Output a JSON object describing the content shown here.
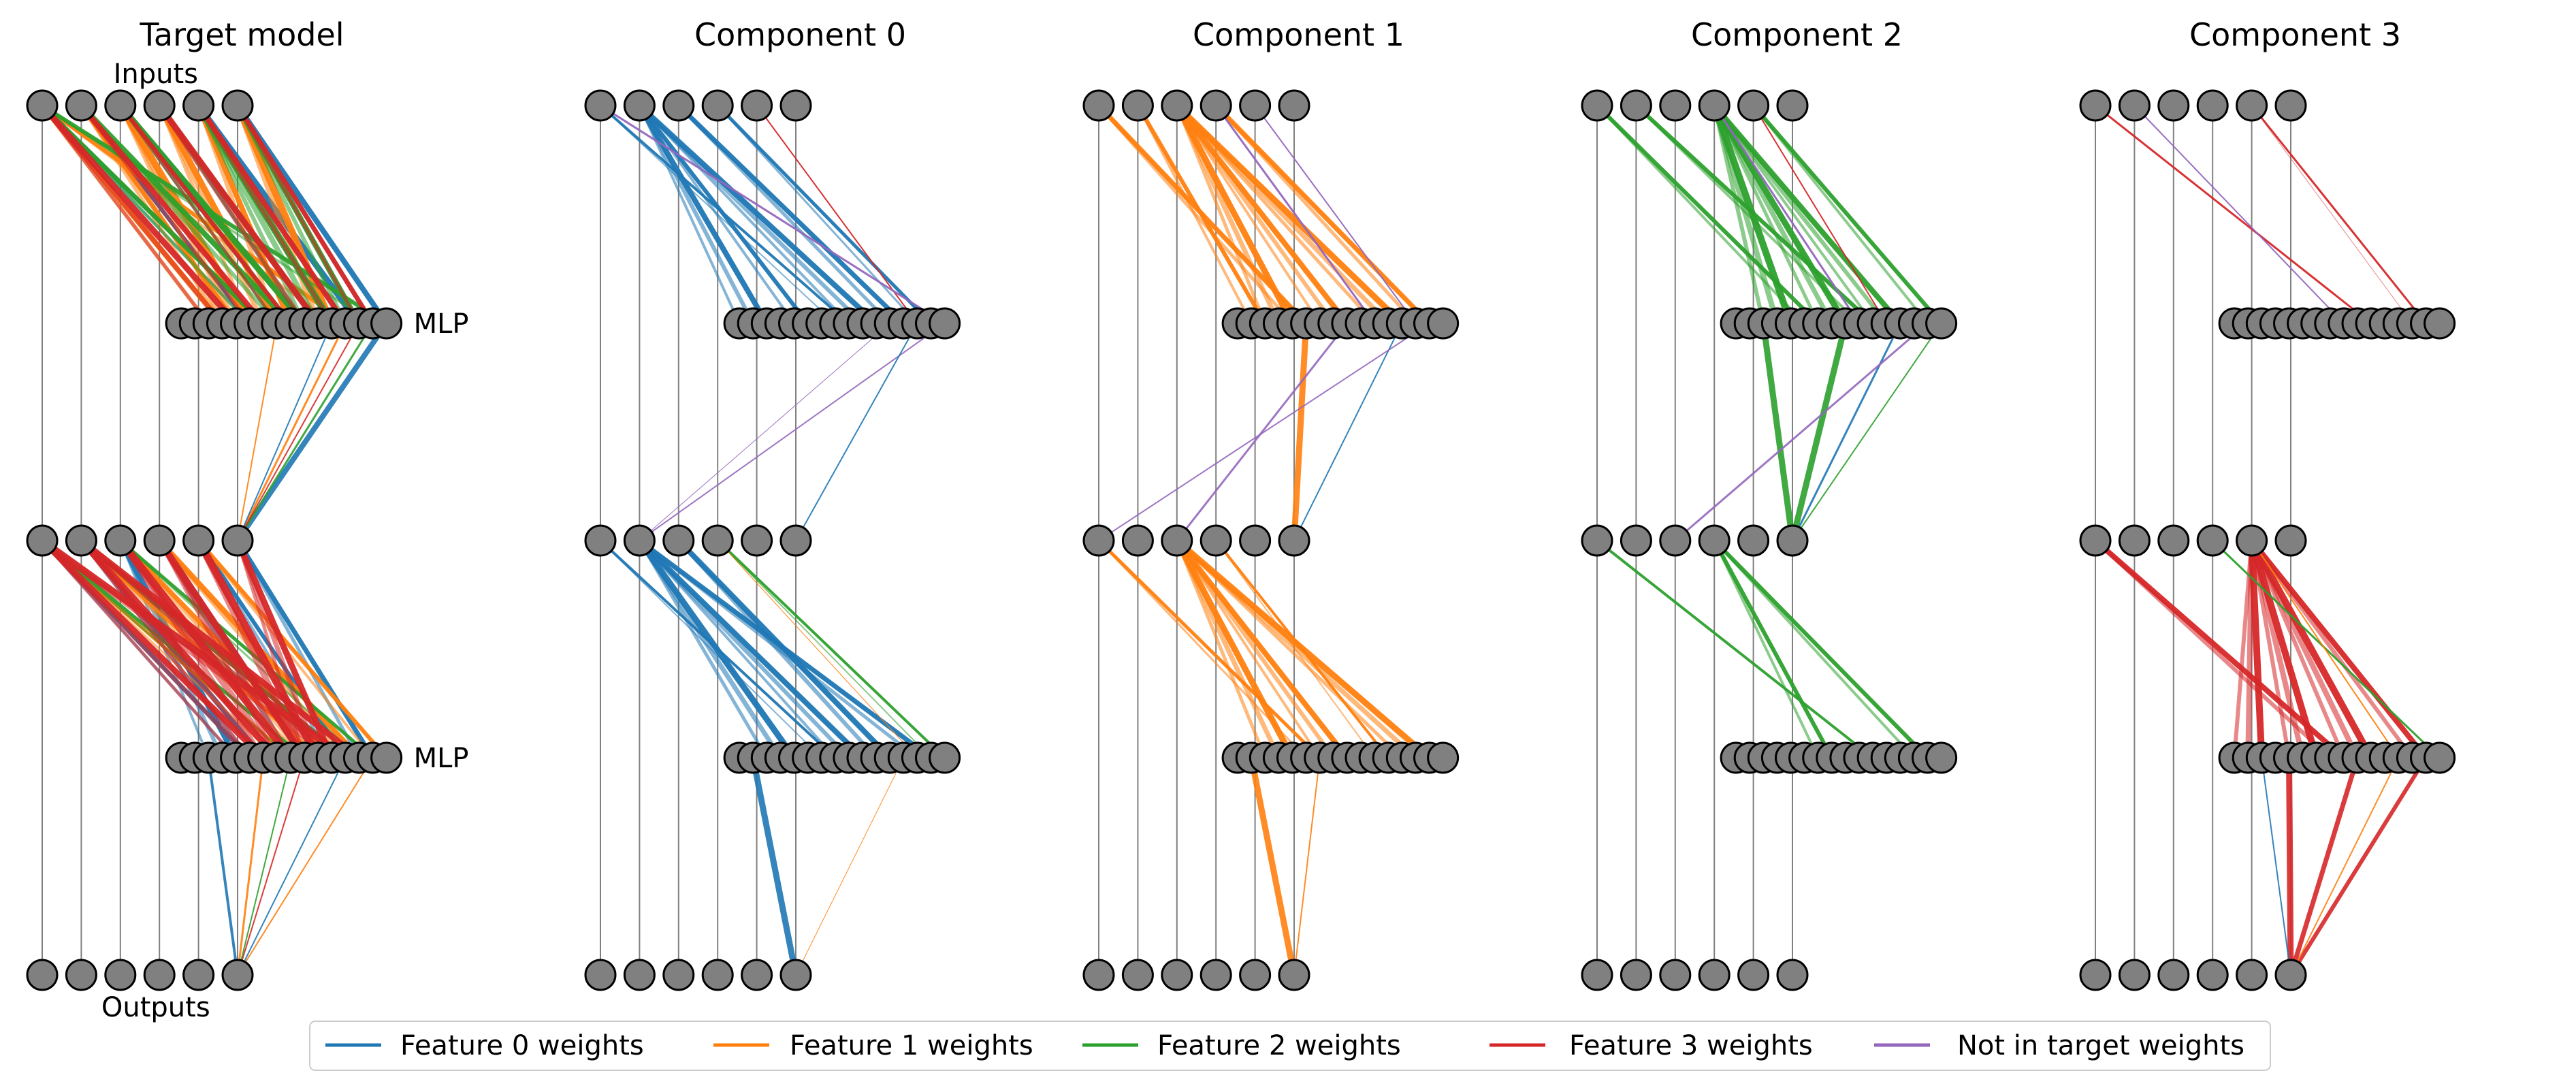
{
  "panels": [
    {
      "title": "Target model",
      "inputs_label": "Inputs",
      "outputs_label": "Outputs",
      "mlp_label": "MLP",
      "layer1": [
        [
          0,
          0,
          6,
          6,
          2
        ],
        [
          0,
          1,
          5,
          6,
          2
        ],
        [
          0,
          2,
          9,
          8,
          3
        ],
        [
          0,
          3,
          10,
          7,
          2
        ],
        [
          0,
          4,
          13,
          9,
          2
        ],
        [
          0,
          5,
          15,
          8,
          2
        ],
        [
          1,
          0,
          3,
          8,
          2
        ],
        [
          1,
          1,
          4,
          7,
          2
        ],
        [
          1,
          2,
          5,
          10,
          3
        ],
        [
          1,
          3,
          7,
          9,
          3
        ],
        [
          1,
          4,
          8,
          8,
          2
        ],
        [
          1,
          5,
          11,
          10,
          2
        ],
        [
          1,
          0,
          12,
          6,
          2
        ],
        [
          2,
          0,
          6,
          7,
          2
        ],
        [
          2,
          1,
          8,
          8,
          2
        ],
        [
          2,
          2,
          9,
          9,
          3
        ],
        [
          2,
          3,
          10,
          7,
          2
        ],
        [
          2,
          4,
          11,
          10,
          3
        ],
        [
          2,
          5,
          13,
          8,
          2
        ],
        [
          2,
          0,
          15,
          6,
          2
        ],
        [
          3,
          0,
          4,
          9,
          3
        ],
        [
          3,
          1,
          6,
          8,
          2
        ],
        [
          3,
          2,
          8,
          6,
          2
        ],
        [
          3,
          3,
          10,
          9,
          2
        ],
        [
          3,
          4,
          12,
          8,
          2
        ],
        [
          3,
          5,
          14,
          7,
          2
        ],
        [
          5,
          0,
          10,
          2,
          2
        ],
        [
          5,
          1,
          12,
          2,
          2
        ],
        [
          5,
          2,
          15,
          2,
          2
        ],
        [
          5,
          3,
          14,
          1,
          1
        ]
      ],
      "layer1_down": [
        [
          0,
          5,
          15,
          8
        ],
        [
          1,
          5,
          12,
          3
        ],
        [
          1,
          5,
          7,
          2
        ],
        [
          2,
          5,
          14,
          3
        ],
        [
          0,
          5,
          11,
          2
        ],
        [
          3,
          5,
          13,
          2
        ]
      ],
      "layer2": [
        [
          0,
          0,
          5,
          6,
          2
        ],
        [
          0,
          1,
          6,
          7,
          2
        ],
        [
          0,
          2,
          4,
          8,
          3
        ],
        [
          0,
          3,
          9,
          9,
          2
        ],
        [
          0,
          4,
          12,
          6,
          2
        ],
        [
          0,
          5,
          14,
          7,
          2
        ],
        [
          1,
          0,
          8,
          5,
          2
        ],
        [
          1,
          1,
          10,
          6,
          2
        ],
        [
          1,
          2,
          11,
          7,
          3
        ],
        [
          1,
          3,
          13,
          8,
          2
        ],
        [
          1,
          4,
          15,
          6,
          2
        ],
        [
          2,
          0,
          9,
          5,
          2
        ],
        [
          2,
          1,
          12,
          6,
          2
        ],
        [
          2,
          2,
          14,
          5,
          2
        ],
        [
          3,
          0,
          6,
          9,
          3
        ],
        [
          3,
          1,
          7,
          10,
          3
        ],
        [
          3,
          2,
          8,
          11,
          3
        ],
        [
          3,
          3,
          9,
          10,
          3
        ],
        [
          3,
          4,
          10,
          11,
          2
        ],
        [
          3,
          5,
          11,
          9,
          3
        ],
        [
          3,
          0,
          12,
          10,
          2
        ],
        [
          3,
          1,
          13,
          9,
          3
        ]
      ],
      "layer2_down": [
        [
          0,
          5,
          2,
          4
        ],
        [
          1,
          5,
          6,
          3
        ],
        [
          3,
          5,
          9,
          2
        ],
        [
          2,
          5,
          8,
          2
        ],
        [
          0,
          5,
          12,
          2
        ],
        [
          1,
          5,
          14,
          2
        ]
      ]
    },
    {
      "title": "Component 0",
      "layer1": [
        [
          0,
          1,
          2,
          8,
          3
        ],
        [
          0,
          1,
          5,
          6,
          2
        ],
        [
          0,
          1,
          10,
          8,
          3
        ],
        [
          0,
          2,
          12,
          7,
          2
        ],
        [
          0,
          0,
          8,
          4,
          2
        ],
        [
          0,
          3,
          14,
          5,
          2
        ],
        [
          3,
          4,
          13,
          2,
          1
        ],
        [
          4,
          0,
          15,
          3,
          1
        ]
      ],
      "layer1_down": [
        [
          4,
          1,
          15,
          2
        ],
        [
          0,
          5,
          13,
          2
        ],
        [
          4,
          1,
          11,
          1
        ]
      ],
      "layer2": [
        [
          0,
          1,
          4,
          9,
          3
        ],
        [
          0,
          1,
          9,
          8,
          3
        ],
        [
          0,
          1,
          14,
          7,
          2
        ],
        [
          0,
          0,
          7,
          4,
          2
        ],
        [
          0,
          2,
          11,
          8,
          2
        ],
        [
          2,
          3,
          15,
          4,
          2
        ],
        [
          1,
          3,
          13,
          1,
          1
        ]
      ],
      "layer2_down": [
        [
          0,
          5,
          1,
          9
        ],
        [
          1,
          5,
          12,
          1
        ]
      ]
    },
    {
      "title": "Component 1",
      "layer1": [
        [
          1,
          0,
          5,
          7,
          2
        ],
        [
          1,
          2,
          4,
          9,
          3
        ],
        [
          1,
          2,
          8,
          8,
          3
        ],
        [
          1,
          2,
          12,
          9,
          3
        ],
        [
          1,
          3,
          14,
          7,
          2
        ],
        [
          1,
          1,
          2,
          6,
          2
        ],
        [
          4,
          3,
          10,
          3,
          1
        ],
        [
          4,
          4,
          13,
          2,
          1
        ]
      ],
      "layer1_down": [
        [
          1,
          5,
          5,
          9
        ],
        [
          4,
          2,
          8,
          3
        ],
        [
          0,
          5,
          12,
          2
        ],
        [
          4,
          0,
          14,
          2
        ]
      ],
      "layer2": [
        [
          1,
          2,
          4,
          9,
          3
        ],
        [
          1,
          2,
          8,
          8,
          3
        ],
        [
          1,
          2,
          14,
          9,
          3
        ],
        [
          1,
          0,
          6,
          5,
          2
        ],
        [
          1,
          3,
          11,
          4,
          2
        ]
      ],
      "layer2_down": [
        [
          1,
          5,
          1,
          9
        ],
        [
          1,
          5,
          6,
          2
        ]
      ]
    },
    {
      "title": "Component 2",
      "layer1": [
        [
          2,
          3,
          4,
          10,
          3
        ],
        [
          2,
          3,
          8,
          9,
          3
        ],
        [
          2,
          3,
          12,
          8,
          3
        ],
        [
          2,
          0,
          6,
          6,
          2
        ],
        [
          2,
          1,
          10,
          6,
          2
        ],
        [
          2,
          4,
          15,
          6,
          2
        ],
        [
          4,
          3,
          9,
          3,
          1
        ],
        [
          3,
          4,
          11,
          2,
          1
        ]
      ],
      "layer1_down": [
        [
          2,
          5,
          2,
          9
        ],
        [
          2,
          5,
          8,
          9
        ],
        [
          0,
          5,
          12,
          3
        ],
        [
          4,
          2,
          14,
          3
        ],
        [
          2,
          5,
          15,
          2
        ]
      ],
      "layer2": [
        [
          2,
          3,
          7,
          6,
          2
        ],
        [
          2,
          3,
          14,
          6,
          2
        ],
        [
          2,
          0,
          10,
          4,
          1
        ]
      ],
      "layer2_down": []
    },
    {
      "title": "Component 3",
      "layer1": [
        [
          3,
          4,
          14,
          3,
          2
        ],
        [
          3,
          0,
          10,
          3,
          1
        ],
        [
          4,
          1,
          8,
          2,
          1
        ]
      ],
      "layer1_down": [],
      "layer2": [
        [
          3,
          4,
          2,
          10,
          3
        ],
        [
          3,
          4,
          6,
          10,
          3
        ],
        [
          3,
          4,
          10,
          10,
          3
        ],
        [
          3,
          0,
          8,
          8,
          2
        ],
        [
          3,
          4,
          14,
          8,
          2
        ],
        [
          2,
          3,
          15,
          3,
          1
        ],
        [
          1,
          4,
          12,
          2,
          1
        ]
      ],
      "layer2_down": [
        [
          3,
          5,
          4,
          9
        ],
        [
          3,
          5,
          9,
          7
        ],
        [
          3,
          5,
          14,
          6
        ],
        [
          0,
          5,
          2,
          2
        ],
        [
          1,
          5,
          12,
          2
        ]
      ]
    }
  ],
  "legend": [
    {
      "label": "Feature 0 weights",
      "color": "#1f77b4"
    },
    {
      "label": "Feature 1 weights",
      "color": "#ff7f0e"
    },
    {
      "label": "Feature 2 weights",
      "color": "#2ca02c"
    },
    {
      "label": "Feature 3 weights",
      "color": "#d62728"
    },
    {
      "label": "Not in target weights",
      "color": "#9467bd"
    }
  ],
  "colors": {
    "node_fill": "#808080",
    "node_stroke": "#000000",
    "residual_line": "#808080"
  }
}
